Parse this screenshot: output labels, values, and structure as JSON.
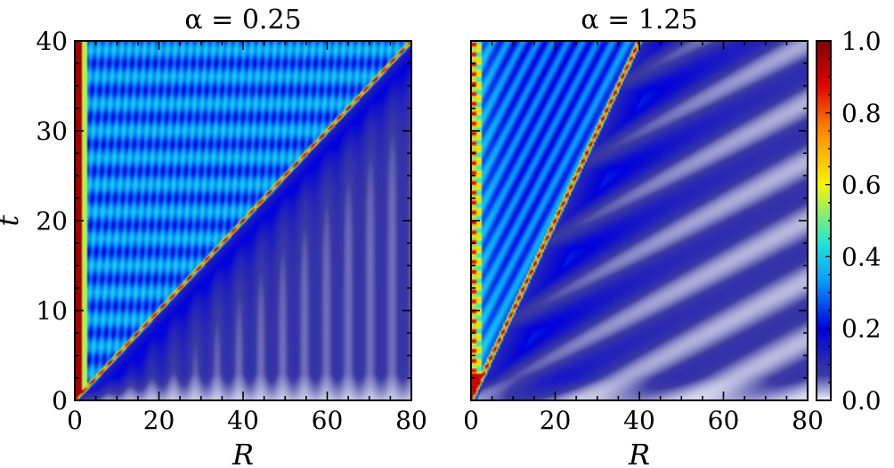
{
  "chart_data": [
    {
      "type": "heatmap",
      "title": "α = 0.25",
      "alpha": 0.25,
      "xlabel": "R",
      "ylabel": "t",
      "xlim": [
        0,
        80
      ],
      "ylim": [
        0,
        40
      ],
      "xticks": [
        "0",
        "20",
        "40",
        "60",
        "80"
      ],
      "yticks": [
        "0",
        "10",
        "20",
        "30",
        "40"
      ],
      "front_speed": 2,
      "colormap": "jet-to-white",
      "zlim": [
        0,
        1
      ]
    },
    {
      "type": "heatmap",
      "title": "α = 1.25",
      "alpha": 1.25,
      "xlabel": "R",
      "ylabel": "",
      "xlim": [
        0,
        80
      ],
      "ylim": [
        0,
        40
      ],
      "xticks": [
        "0",
        "20",
        "40",
        "60",
        "80"
      ],
      "yticks": [],
      "front_speed": 1,
      "colormap": "jet-to-white",
      "zlim": [
        0,
        1
      ]
    }
  ],
  "colorbar": {
    "ticks": [
      "0.0",
      "0.2",
      "0.4",
      "0.6",
      "0.8",
      "1.0"
    ],
    "colors": [
      "#f4f4fb",
      "#3b3ba3",
      "#0000dd",
      "#0a9aff",
      "#22e6d6",
      "#f5f500",
      "#ff8a00",
      "#e00000",
      "#800000"
    ]
  }
}
